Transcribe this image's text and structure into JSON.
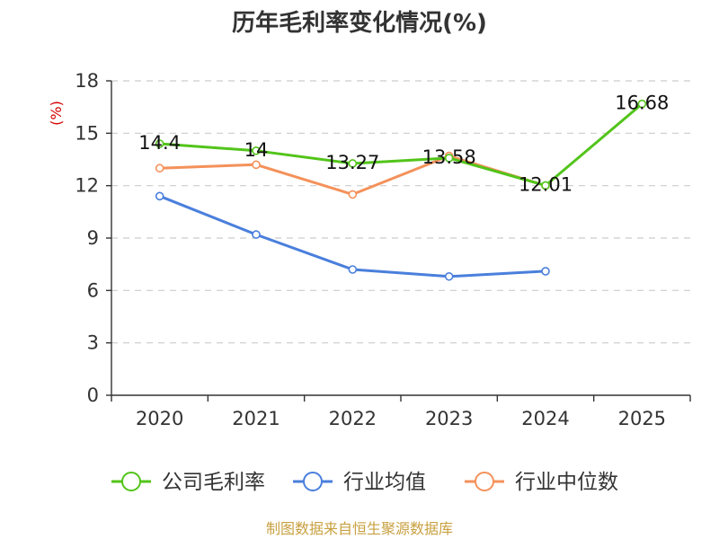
{
  "chart_data": {
    "type": "line",
    "title": "历年毛利率变化情况(%)",
    "y_unit": "(%)",
    "categories": [
      "2020",
      "2021",
      "2022",
      "2023",
      "2024",
      "2025"
    ],
    "ylim": [
      0,
      18
    ],
    "yticks": [
      0,
      3,
      6,
      9,
      12,
      15,
      18
    ],
    "grid": true,
    "legend_position": "bottom",
    "series": [
      {
        "name": "公司毛利率",
        "color": "#52c41a",
        "values": [
          14.4,
          14,
          13.27,
          13.58,
          12.01,
          16.68
        ],
        "labels": [
          "14.4",
          "14",
          "13.27",
          "13.58",
          "12.01",
          "16.68"
        ]
      },
      {
        "name": "行业均值",
        "color": "#4a7fdc",
        "values": [
          11.4,
          9.2,
          7.2,
          6.8,
          7.1,
          null
        ]
      },
      {
        "name": "行业中位数",
        "color": "#f4915a",
        "values": [
          13.0,
          13.2,
          11.5,
          13.7,
          12.0,
          null
        ]
      }
    ],
    "source": "制图数据来自恒生聚源数据库"
  }
}
